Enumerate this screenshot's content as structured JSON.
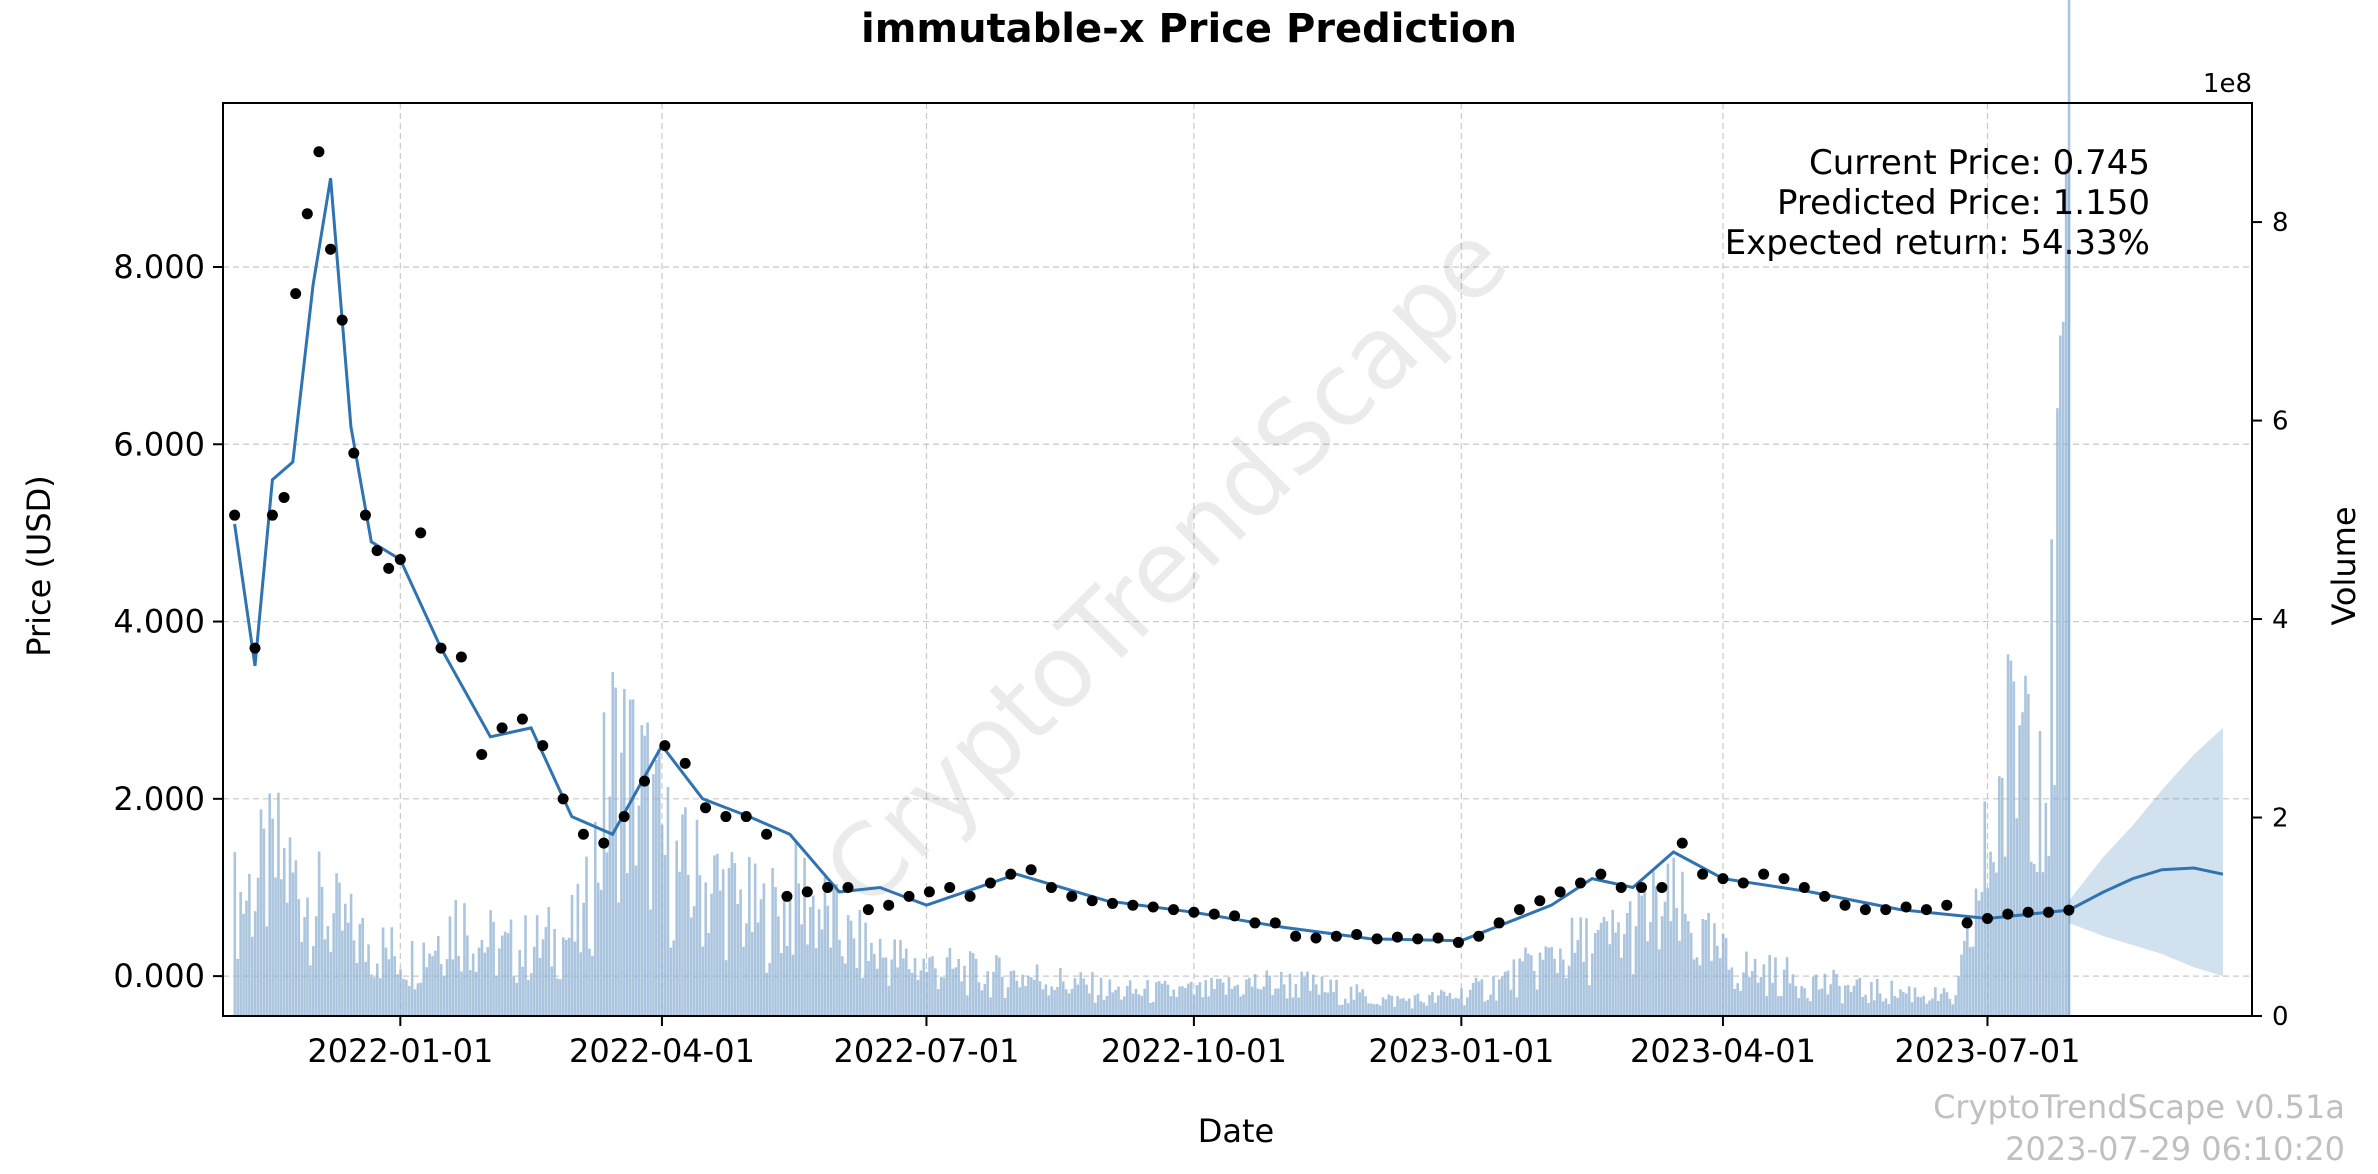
{
  "chart_data": {
    "type": "line",
    "title": "immutable-x Price Prediction",
    "xlabel": "Date",
    "ylabel": "Price (USD)",
    "y2label": "Volume",
    "y2_scale_label": "1e8",
    "xlim": [
      "2021-11-01",
      "2023-09-30"
    ],
    "ylim": [
      -0.45,
      9.85
    ],
    "y2lim": [
      0,
      9.2
    ],
    "x_ticks": [
      "2022-01-01",
      "2022-04-01",
      "2022-07-01",
      "2022-10-01",
      "2023-01-01",
      "2023-04-01",
      "2023-07-01"
    ],
    "y_ticks": [
      0,
      2,
      4,
      6,
      8
    ],
    "y_tick_labels": [
      "0.000",
      "2.000",
      "4.000",
      "6.000",
      "8.000"
    ],
    "y2_ticks": [
      0,
      2,
      4,
      6,
      8
    ],
    "y2_tick_labels": [
      "0",
      "2",
      "4",
      "6",
      "8"
    ],
    "grid": true,
    "annotations": {
      "current_price": "Current Price: 0.745",
      "predicted_price": "Predicted Price: 1.150",
      "expected_return": "Expected return: 54.33%"
    },
    "watermark": "CryptoTrendScape",
    "footer": {
      "version": "CryptoTrendScape v0.51a",
      "timestamp": "2023-07-29 06:10:20"
    },
    "series": [
      {
        "name": "Price (observed)",
        "style": "points",
        "x": [
          "2021-11-05",
          "2021-11-12",
          "2021-11-18",
          "2021-11-22",
          "2021-11-26",
          "2021-11-30",
          "2021-12-04",
          "2021-12-08",
          "2021-12-12",
          "2021-12-16",
          "2021-12-20",
          "2021-12-24",
          "2021-12-28",
          "2022-01-01",
          "2022-01-08",
          "2022-01-15",
          "2022-01-22",
          "2022-01-29",
          "2022-02-05",
          "2022-02-12",
          "2022-02-19",
          "2022-02-26",
          "2022-03-05",
          "2022-03-12",
          "2022-03-19",
          "2022-03-26",
          "2022-04-02",
          "2022-04-09",
          "2022-04-16",
          "2022-04-23",
          "2022-04-30",
          "2022-05-07",
          "2022-05-14",
          "2022-05-21",
          "2022-05-28",
          "2022-06-04",
          "2022-06-11",
          "2022-06-18",
          "2022-06-25",
          "2022-07-02",
          "2022-07-09",
          "2022-07-16",
          "2022-07-23",
          "2022-07-30",
          "2022-08-06",
          "2022-08-13",
          "2022-08-20",
          "2022-08-27",
          "2022-09-03",
          "2022-09-10",
          "2022-09-17",
          "2022-09-24",
          "2022-10-01",
          "2022-10-08",
          "2022-10-15",
          "2022-10-22",
          "2022-10-29",
          "2022-11-05",
          "2022-11-12",
          "2022-11-19",
          "2022-11-26",
          "2022-12-03",
          "2022-12-10",
          "2022-12-17",
          "2022-12-24",
          "2022-12-31",
          "2023-01-07",
          "2023-01-14",
          "2023-01-21",
          "2023-01-28",
          "2023-02-04",
          "2023-02-11",
          "2023-02-18",
          "2023-02-25",
          "2023-03-04",
          "2023-03-11",
          "2023-03-18",
          "2023-03-25",
          "2023-04-01",
          "2023-04-08",
          "2023-04-15",
          "2023-04-22",
          "2023-04-29",
          "2023-05-06",
          "2023-05-13",
          "2023-05-20",
          "2023-05-27",
          "2023-06-03",
          "2023-06-10",
          "2023-06-17",
          "2023-06-24",
          "2023-07-01",
          "2023-07-08",
          "2023-07-15",
          "2023-07-22",
          "2023-07-29"
        ],
        "values": [
          5.2,
          3.7,
          5.2,
          5.4,
          7.7,
          8.6,
          9.3,
          8.2,
          7.4,
          5.9,
          5.2,
          4.8,
          4.6,
          4.7,
          5.0,
          3.7,
          3.6,
          2.5,
          2.8,
          2.9,
          2.6,
          2.0,
          1.6,
          1.5,
          1.8,
          2.2,
          2.6,
          2.4,
          1.9,
          1.8,
          1.8,
          1.6,
          0.9,
          0.95,
          1.0,
          1.0,
          0.75,
          0.8,
          0.9,
          0.95,
          1.0,
          0.9,
          1.05,
          1.15,
          1.2,
          1.0,
          0.9,
          0.85,
          0.82,
          0.8,
          0.78,
          0.75,
          0.72,
          0.7,
          0.68,
          0.6,
          0.6,
          0.45,
          0.43,
          0.45,
          0.47,
          0.42,
          0.44,
          0.42,
          0.43,
          0.38,
          0.45,
          0.6,
          0.75,
          0.85,
          0.95,
          1.05,
          1.15,
          1.0,
          1.0,
          1.0,
          1.5,
          1.15,
          1.1,
          1.05,
          1.15,
          1.1,
          1.0,
          0.9,
          0.8,
          0.75,
          0.75,
          0.78,
          0.75,
          0.8,
          0.6,
          0.65,
          0.7,
          0.72,
          0.72,
          0.745
        ]
      },
      {
        "name": "Model fit / forecast",
        "style": "line",
        "x": [
          "2021-11-05",
          "2021-11-12",
          "2021-11-18",
          "2021-11-25",
          "2021-12-02",
          "2021-12-08",
          "2021-12-15",
          "2021-12-22",
          "2022-01-01",
          "2022-01-15",
          "2022-02-01",
          "2022-02-15",
          "2022-03-01",
          "2022-03-15",
          "2022-04-01",
          "2022-04-15",
          "2022-05-01",
          "2022-05-15",
          "2022-06-01",
          "2022-06-15",
          "2022-07-01",
          "2022-08-01",
          "2022-09-01",
          "2022-10-01",
          "2022-11-01",
          "2022-12-01",
          "2023-01-01",
          "2023-02-01",
          "2023-02-15",
          "2023-03-01",
          "2023-03-15",
          "2023-04-01",
          "2023-05-01",
          "2023-06-01",
          "2023-07-01",
          "2023-07-29",
          "2023-08-10",
          "2023-08-20",
          "2023-08-30",
          "2023-09-10",
          "2023-09-20"
        ],
        "values": [
          5.1,
          3.5,
          5.6,
          5.8,
          7.8,
          9.0,
          6.2,
          4.9,
          4.7,
          3.7,
          2.7,
          2.8,
          1.8,
          1.6,
          2.6,
          2.0,
          1.8,
          1.6,
          0.95,
          1.0,
          0.8,
          1.15,
          0.85,
          0.72,
          0.55,
          0.42,
          0.4,
          0.8,
          1.1,
          1.0,
          1.4,
          1.1,
          0.95,
          0.75,
          0.65,
          0.745,
          0.95,
          1.1,
          1.2,
          1.22,
          1.15
        ]
      },
      {
        "name": "Forecast interval",
        "style": "band",
        "x": [
          "2023-07-29",
          "2023-08-10",
          "2023-08-20",
          "2023-08-30",
          "2023-09-10",
          "2023-09-20"
        ],
        "lower": [
          0.6,
          0.45,
          0.35,
          0.25,
          0.1,
          0.0
        ],
        "upper": [
          0.85,
          1.35,
          1.7,
          2.1,
          2.5,
          2.8
        ]
      },
      {
        "name": "Volume",
        "style": "bars",
        "axis": "y2",
        "unit_scale": "1e8",
        "x": [
          "2021-11-05",
          "2021-11-20",
          "2021-12-05",
          "2021-12-20",
          "2022-01-05",
          "2022-01-20",
          "2022-02-05",
          "2022-02-20",
          "2022-03-05",
          "2022-03-15",
          "2022-03-25",
          "2022-04-05",
          "2022-04-20",
          "2022-05-05",
          "2022-05-20",
          "2022-06-05",
          "2022-06-20",
          "2022-07-05",
          "2022-07-20",
          "2022-08-05",
          "2022-08-20",
          "2022-09-05",
          "2022-09-20",
          "2022-10-05",
          "2022-10-20",
          "2022-11-05",
          "2022-11-20",
          "2022-12-05",
          "2022-12-20",
          "2023-01-05",
          "2023-01-20",
          "2023-02-05",
          "2023-02-20",
          "2023-03-05",
          "2023-03-15",
          "2023-03-25",
          "2023-04-05",
          "2023-04-20",
          "2023-05-05",
          "2023-05-20",
          "2023-06-05",
          "2023-06-20",
          "2023-07-01",
          "2023-07-08",
          "2023-07-15",
          "2023-07-22",
          "2023-07-29"
        ],
        "values": [
          1.4,
          1.9,
          1.3,
          0.9,
          0.7,
          1.2,
          0.8,
          0.9,
          1.1,
          3.2,
          2.8,
          1.8,
          1.6,
          1.2,
          1.5,
          0.9,
          0.7,
          0.6,
          0.5,
          0.5,
          0.4,
          0.3,
          0.3,
          0.3,
          0.4,
          0.4,
          0.3,
          0.2,
          0.2,
          0.3,
          0.5,
          0.8,
          0.9,
          1.2,
          1.3,
          0.9,
          0.6,
          0.5,
          0.4,
          0.3,
          0.3,
          0.2,
          2.0,
          3.1,
          4.3,
          3.2,
          8.6
        ]
      }
    ]
  }
}
